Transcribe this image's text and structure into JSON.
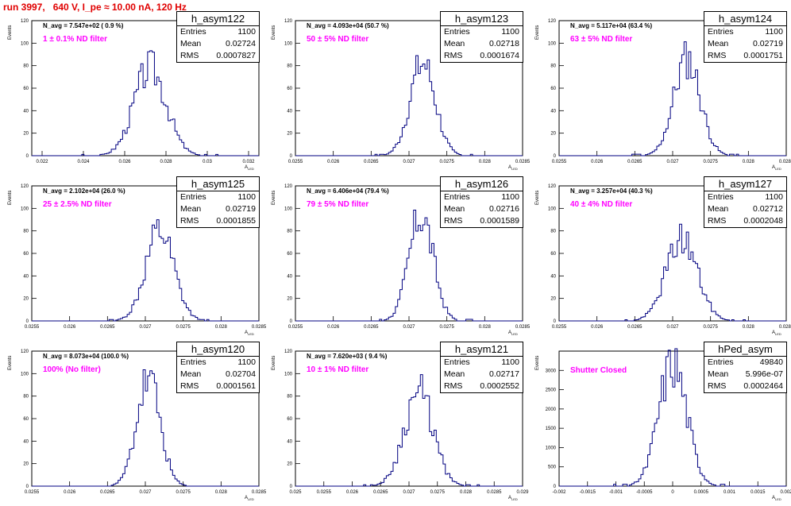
{
  "page_title": "run 3997,   640 V, I_pe ≈ 10.00 nA, 120 Hz",
  "axis_labels": {
    "y": "Events",
    "x": "A",
    "x_sub": "LED"
  },
  "stat_labels": {
    "entries": "Entries",
    "mean": "Mean",
    "rms": "RMS"
  },
  "chart_data": [
    {
      "type": "bar",
      "name": "h_asym122",
      "navg": "N_avg = 7.547e+02 ( 0.9 %)",
      "filter": "1 ± 0.1% ND filter",
      "stats": {
        "entries": "1100",
        "mean": "0.02724",
        "rms": "0.0007827"
      },
      "xlim": [
        0.0215,
        0.0325
      ],
      "ylim": [
        0,
        120
      ],
      "xticks": [
        "0.022",
        "0.024",
        "0.026",
        "0.028",
        "0.03",
        "0.032"
      ],
      "xtick_vals": [
        0.022,
        0.024,
        0.026,
        0.028,
        0.03,
        0.032
      ],
      "yticks": [
        "0",
        "20",
        "40",
        "60",
        "80",
        "100",
        "120"
      ],
      "mean": 0.02724,
      "sigma": 0.00078,
      "peak": 78,
      "seed": 3
    },
    {
      "type": "bar",
      "name": "h_asym123",
      "navg": "N_avg = 4.093e+04 (50.7 %)",
      "filter": "50 ± 5% ND filter",
      "stats": {
        "entries": "1100",
        "mean": "0.02718",
        "rms": "0.0001674"
      },
      "xlim": [
        0.0255,
        0.0285
      ],
      "ylim": [
        0,
        120
      ],
      "xticks": [
        "0.0255",
        "0.026",
        "0.0265",
        "0.027",
        "0.0275",
        "0.028",
        "0.0285"
      ],
      "xtick_vals": [
        0.0255,
        0.026,
        0.0265,
        0.027,
        0.0275,
        0.028,
        0.0285
      ],
      "yticks": [
        "0",
        "20",
        "40",
        "60",
        "80",
        "100",
        "120"
      ],
      "mean": 0.02718,
      "sigma": 0.000167,
      "peak": 82,
      "seed": 7
    },
    {
      "type": "bar",
      "name": "h_asym124",
      "navg": "N_avg = 5.117e+04 (63.4 %)",
      "filter": "63 ± 5% ND filter",
      "stats": {
        "entries": "1100",
        "mean": "0.02719",
        "rms": "0.0001751"
      },
      "xlim": [
        0.0255,
        0.0285
      ],
      "ylim": [
        0,
        120
      ],
      "xticks": [
        "0.0255",
        "0.026",
        "0.0265",
        "0.027",
        "0.0275",
        "0.028",
        "0.0285"
      ],
      "xtick_vals": [
        0.0255,
        0.026,
        0.0265,
        0.027,
        0.0275,
        0.028,
        0.0285
      ],
      "yticks": [
        "0",
        "20",
        "40",
        "60",
        "80",
        "100",
        "120"
      ],
      "mean": 0.02719,
      "sigma": 0.000175,
      "peak": 86,
      "seed": 11
    },
    {
      "type": "bar",
      "name": "h_asym125",
      "navg": "N_avg = 2.102e+04 (26.0 %)",
      "filter": "25 ± 2.5% ND filter",
      "stats": {
        "entries": "1100",
        "mean": "0.02719",
        "rms": "0.0001855"
      },
      "xlim": [
        0.0255,
        0.0285
      ],
      "ylim": [
        0,
        120
      ],
      "xticks": [
        "0.0255",
        "0.026",
        "0.0265",
        "0.027",
        "0.0275",
        "0.028",
        "0.0285"
      ],
      "xtick_vals": [
        0.0255,
        0.026,
        0.0265,
        0.027,
        0.0275,
        0.028,
        0.0285
      ],
      "yticks": [
        "0",
        "20",
        "40",
        "60",
        "80",
        "100",
        "120"
      ],
      "mean": 0.02719,
      "sigma": 0.000186,
      "peak": 80,
      "seed": 13
    },
    {
      "type": "bar",
      "name": "h_asym126",
      "navg": "N_avg = 6.406e+04 (79.4 %)",
      "filter": "79 ± 5% ND filter",
      "stats": {
        "entries": "1100",
        "mean": "0.02716",
        "rms": "0.0001589"
      },
      "xlim": [
        0.0255,
        0.0285
      ],
      "ylim": [
        0,
        120
      ],
      "xticks": [
        "0.0255",
        "0.026",
        "0.0265",
        "0.027",
        "0.0275",
        "0.028",
        "0.0285"
      ],
      "xtick_vals": [
        0.0255,
        0.026,
        0.0265,
        0.027,
        0.0275,
        0.028,
        0.0285
      ],
      "yticks": [
        "0",
        "20",
        "40",
        "60",
        "80",
        "100",
        "120"
      ],
      "mean": 0.02716,
      "sigma": 0.000159,
      "peak": 94,
      "seed": 17
    },
    {
      "type": "bar",
      "name": "h_asym127",
      "navg": "N_avg = 3.257e+04 (40.3 %)",
      "filter": "40 ± 4% ND filter",
      "stats": {
        "entries": "1100",
        "mean": "0.02712",
        "rms": "0.0002048"
      },
      "xlim": [
        0.0255,
        0.0285
      ],
      "ylim": [
        0,
        120
      ],
      "xticks": [
        "0.0255",
        "0.026",
        "0.0265",
        "0.027",
        "0.0275",
        "0.028",
        "0.0285"
      ],
      "xtick_vals": [
        0.0255,
        0.026,
        0.0265,
        0.027,
        0.0275,
        0.028,
        0.0285
      ],
      "yticks": [
        "0",
        "20",
        "40",
        "60",
        "80",
        "100",
        "120"
      ],
      "mean": 0.02712,
      "sigma": 0.000205,
      "peak": 73,
      "seed": 19
    },
    {
      "type": "bar",
      "name": "h_asym120",
      "navg": "N_avg = 8.073e+04 (100.0 %)",
      "filter": "100% (No filter)",
      "stats": {
        "entries": "1100",
        "mean": "0.02704",
        "rms": "0.0001561"
      },
      "xlim": [
        0.0255,
        0.0285
      ],
      "ylim": [
        0,
        120
      ],
      "xticks": [
        "0.0255",
        "0.026",
        "0.0265",
        "0.027",
        "0.0275",
        "0.028",
        "0.0285"
      ],
      "xtick_vals": [
        0.0255,
        0.026,
        0.0265,
        0.027,
        0.0275,
        0.028,
        0.0285
      ],
      "yticks": [
        "0",
        "20",
        "40",
        "60",
        "80",
        "100",
        "120"
      ],
      "mean": 0.02704,
      "sigma": 0.000156,
      "peak": 94,
      "seed": 23
    },
    {
      "type": "bar",
      "name": "h_asym121",
      "navg": "N_avg = 7.620e+03 ( 9.4 %)",
      "filter": "10 ± 1% ND filter",
      "stats": {
        "entries": "1100",
        "mean": "0.02717",
        "rms": "0.0002552"
      },
      "xlim": [
        0.025,
        0.029
      ],
      "ylim": [
        0,
        120
      ],
      "xticks": [
        "0.025",
        "0.0255",
        "0.026",
        "0.0265",
        "0.027",
        "0.0275",
        "0.028",
        "0.0285",
        "0.029"
      ],
      "xtick_vals": [
        0.025,
        0.0255,
        0.026,
        0.0265,
        0.027,
        0.0275,
        0.028,
        0.0285,
        0.029
      ],
      "yticks": [
        "0",
        "20",
        "40",
        "60",
        "80",
        "100",
        "120"
      ],
      "mean": 0.02717,
      "sigma": 0.000255,
      "peak": 84,
      "seed": 29
    },
    {
      "type": "bar",
      "name": "hPed_asym",
      "navg": "",
      "filter": "Shutter Closed",
      "stats": {
        "entries": "49840",
        "mean": "5.996e-07",
        "rms": "0.0002464"
      },
      "xlim": [
        -0.002,
        0.002
      ],
      "ylim": [
        0,
        3500
      ],
      "xticks": [
        "-0.002",
        "-0.0015",
        "-0.001",
        "-0.0005",
        "0",
        "0.0005",
        "0.001",
        "0.0015",
        "0.002"
      ],
      "xtick_vals": [
        -0.002,
        -0.0015,
        -0.001,
        -0.0005,
        0,
        0.0005,
        0.001,
        0.0015,
        0.002
      ],
      "yticks": [
        "0",
        "500",
        "1000",
        "1500",
        "2000",
        "2500",
        "3000"
      ],
      "mean": 6e-07,
      "sigma": 0.000246,
      "peak": 3200,
      "seed": 31
    }
  ]
}
